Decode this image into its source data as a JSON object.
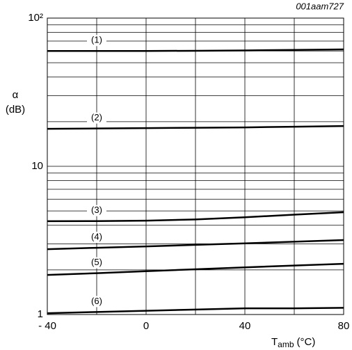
{
  "chart_data": {
    "type": "line",
    "code": "001aam727",
    "ylabel": "α",
    "ylabel_unit": "(dB)",
    "xlabel": {
      "main": "T",
      "sub": "amb",
      "unit": "(°C)"
    },
    "x": [
      -40,
      -20,
      0,
      20,
      40,
      60,
      80
    ],
    "series": [
      {
        "name": "(1)",
        "color": "#000000",
        "values": [
          60,
          60,
          60,
          60.2,
          60.5,
          61,
          61.5
        ]
      },
      {
        "name": "(2)",
        "color": "#000000",
        "values": [
          17.9,
          18,
          18.1,
          18.2,
          18.3,
          18.5,
          18.7
        ]
      },
      {
        "name": "(3)",
        "color": "#000000",
        "values": [
          4.26,
          4.27,
          4.3,
          4.38,
          4.53,
          4.72,
          4.9
        ]
      },
      {
        "name": "(4)",
        "color": "#000000",
        "values": [
          2.76,
          2.82,
          2.88,
          2.95,
          3.02,
          3.1,
          3.18
        ]
      },
      {
        "name": "(5)",
        "color": "#000000",
        "values": [
          1.85,
          1.9,
          1.96,
          2.02,
          2.08,
          2.14,
          2.2
        ]
      },
      {
        "name": "(6)",
        "color": "#000000",
        "values": [
          1.02,
          1.04,
          1.06,
          1.08,
          1.1,
          1.1,
          1.11
        ]
      }
    ],
    "xlim": [
      -40,
      80
    ],
    "xticks": [
      {
        "value": -40,
        "label": "- 40"
      },
      0,
      40,
      80
    ],
    "x_minor_grid": [
      -20,
      20,
      60
    ],
    "ylim": [
      1,
      100
    ],
    "log_y": true,
    "yticks": [
      1,
      10,
      {
        "value": 100,
        "label": "10²"
      }
    ],
    "y_minor_grid": [
      2,
      3,
      4,
      5,
      6,
      7,
      8,
      9,
      20,
      30,
      40,
      50,
      60,
      70,
      80,
      90
    ],
    "grid": true
  }
}
